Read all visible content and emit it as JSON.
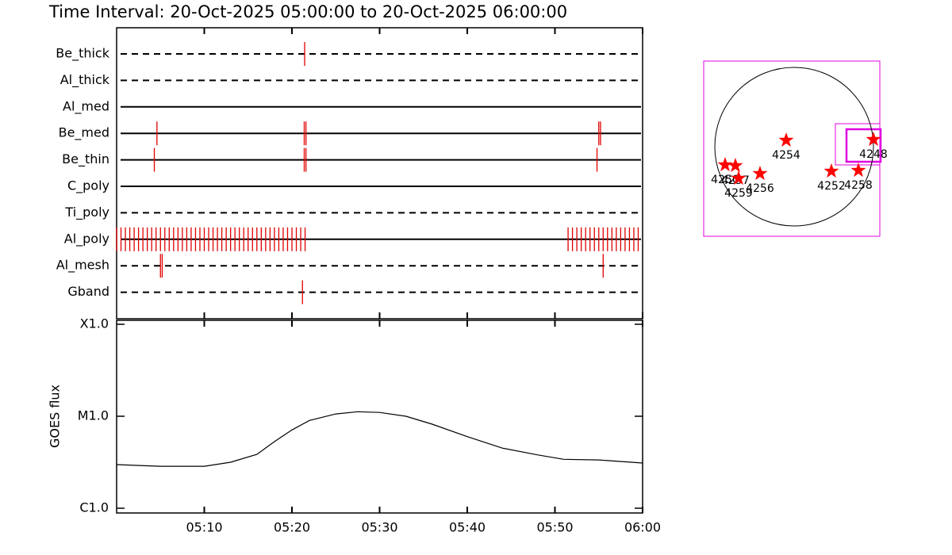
{
  "chart_data": [
    {
      "type": "timeline",
      "title": "Time Interval: 20-Oct-2025 05:00:00 to 20-Oct-2025 06:00:00",
      "categories": [
        "Be_thick",
        "Al_thick",
        "Al_med",
        "Be_med",
        "Be_thin",
        "C_poly",
        "Ti_poly",
        "Al_poly",
        "Al_mesh",
        "Gband"
      ],
      "line_styles": [
        "dashed",
        "dashed",
        "solid",
        "solid",
        "solid",
        "solid",
        "dashed",
        "solid",
        "dashed",
        "dashed"
      ],
      "events": [
        [
          21.45
        ],
        [],
        [],
        [
          4.6,
          21.4,
          21.6,
          55.0,
          55.2
        ],
        [
          4.3,
          21.4,
          21.6,
          54.8
        ],
        [],
        [],
        [
          0,
          0.5,
          1,
          1.5,
          2,
          2.5,
          3,
          3.5,
          4,
          4.5,
          5,
          5.5,
          6,
          6.5,
          7,
          7.5,
          8,
          8.5,
          9,
          9.5,
          10,
          10.5,
          11,
          11.5,
          12,
          12.5,
          13,
          13.5,
          14,
          14.5,
          15,
          15.5,
          16,
          16.5,
          17,
          17.5,
          18,
          18.5,
          19,
          19.5,
          20,
          20.5,
          21,
          21.5,
          51.5,
          52,
          52.5,
          53,
          53.5,
          54,
          54.5,
          55,
          55.5,
          56,
          56.5,
          57,
          57.5,
          58,
          58.5,
          59,
          59.5
        ],
        [
          5.0,
          5.2,
          55.5
        ],
        [
          21.2
        ]
      ],
      "color": "#e00000",
      "xlim": [
        0,
        60
      ],
      "xticks": [
        10,
        20,
        30,
        40,
        50,
        60
      ]
    },
    {
      "type": "line",
      "ylabel": "GOES flux",
      "log_scale": true,
      "color": "#000000",
      "x": [
        0,
        5,
        10,
        13,
        16,
        18,
        20,
        22,
        25,
        27.5,
        30,
        33,
        36,
        40,
        44,
        48,
        51,
        55,
        60
      ],
      "values": [
        2.98e-06,
        2.86e-06,
        2.86e-06,
        3.16e-06,
        3.85e-06,
        5.3e-06,
        7.1e-06,
        9e-06,
        1.06e-05,
        1.12e-05,
        1.1e-05,
        1e-05,
        8.2e-06,
        6e-06,
        4.5e-06,
        3.8e-06,
        3.4e-06,
        3.35e-06,
        3.1e-06
      ],
      "xlim": [
        0,
        60
      ],
      "xticks": [
        {
          "value": 10,
          "label": "05:10"
        },
        {
          "value": 20,
          "label": "05:20"
        },
        {
          "value": 30,
          "label": "05:30"
        },
        {
          "value": 40,
          "label": "05:40"
        },
        {
          "value": 50,
          "label": "05:50"
        },
        {
          "value": 60,
          "label": "06:00"
        }
      ],
      "ylim": [
        1e-06,
        0.0001
      ],
      "yticks": [
        {
          "value": 1e-06,
          "label": "C1.0"
        },
        {
          "value": 1e-05,
          "label": "M1.0"
        },
        {
          "value": 0.0001,
          "label": "X1.0"
        }
      ]
    },
    {
      "type": "map",
      "color": "#ff0000",
      "xlim": [
        -1.14,
        1.08
      ],
      "ylim": [
        -1.13,
        1.08
      ],
      "labels": [
        "4254",
        "4248",
        "4252",
        "4258",
        "4256",
        "4250",
        "4257",
        "4259"
      ],
      "x": [
        -0.1,
        1.0,
        0.47,
        0.81,
        -0.43,
        -0.87,
        -0.74,
        -0.7
      ],
      "y": [
        0.08,
        0.09,
        -0.31,
        -0.3,
        -0.34,
        -0.23,
        -0.24,
        -0.4
      ]
    }
  ]
}
